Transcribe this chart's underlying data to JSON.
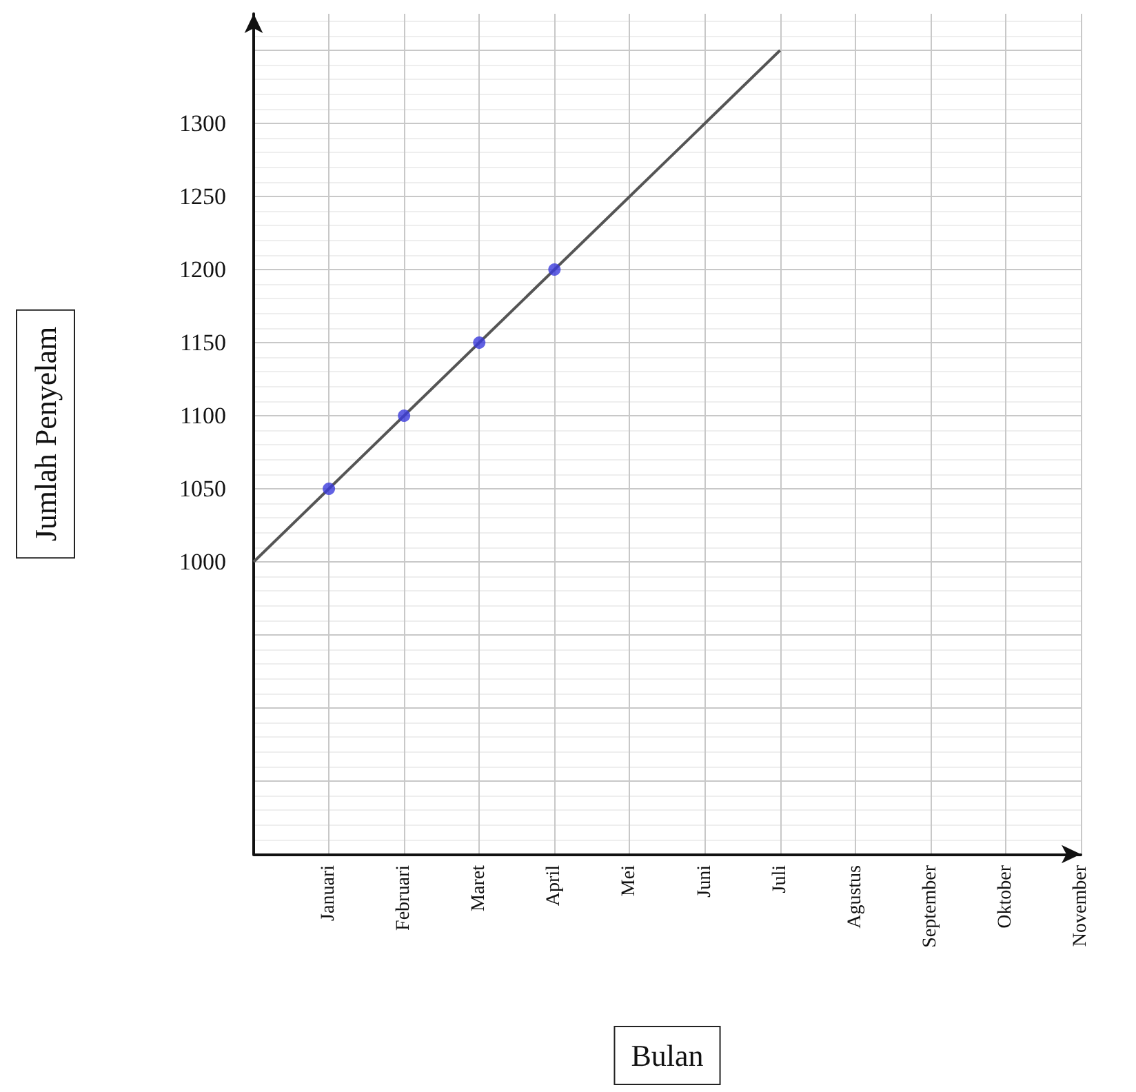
{
  "chart_data": {
    "type": "line",
    "xlabel": "Bulan",
    "ylabel": "Jumlah Penyelam",
    "categories": [
      null,
      "Januari",
      "Februari",
      "Maret",
      "April",
      "Mei",
      "Juni",
      "Juli",
      "Agustus",
      "September",
      "Oktober",
      "November"
    ],
    "ylim": [
      800,
      1375
    ],
    "yticks": [
      {
        "value": 800,
        "label": null
      },
      {
        "value": 850,
        "label": null
      },
      {
        "value": 900,
        "label": null
      },
      {
        "value": 950,
        "label": null
      },
      1000,
      1050,
      1100,
      1150,
      1200,
      1250,
      1300,
      {
        "value": 1350,
        "label": null
      }
    ],
    "grid": true,
    "series": [
      {
        "color": "#555555",
        "values": [
          1000,
          1050,
          1100,
          1150,
          1200,
          1250,
          1300,
          1350,
          null,
          null,
          null,
          null
        ],
        "marker": "none"
      },
      {
        "type": "scatter",
        "color": "#3b3bdc",
        "values": [
          null,
          1050,
          1100,
          1150,
          1200,
          null,
          null,
          null,
          null,
          null,
          null,
          null
        ],
        "marker": "circle"
      }
    ]
  }
}
